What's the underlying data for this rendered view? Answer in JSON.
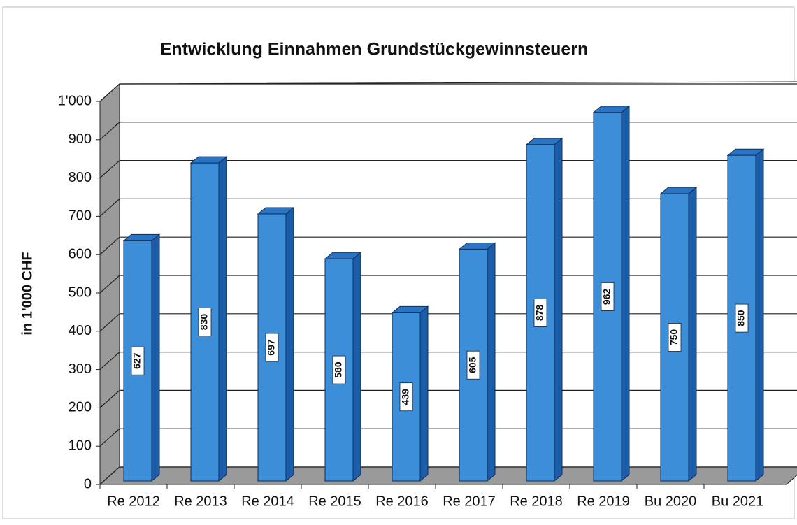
{
  "chart_data": {
    "type": "bar3d",
    "title": "Entwicklung Einnahmen Grundstückgewinnsteuern",
    "y_label": "in 1'000 CHF",
    "categories": [
      "Re 2012",
      "Re 2013",
      "Re 2014",
      "Re 2015",
      "Re 2016",
      "Re 2017",
      "Re 2018",
      "Re 2019",
      "Bu 2020",
      "Bu 2021"
    ],
    "values": [
      627,
      830,
      697,
      580,
      439,
      605,
      878,
      962,
      750,
      850
    ],
    "color": "#3d8ed8",
    "ylim": [
      0,
      1000
    ],
    "yticks": [
      0,
      100,
      200,
      300,
      400,
      500,
      600,
      700,
      800,
      900,
      {
        "value": 1000,
        "label": "1'000"
      }
    ],
    "grid": true
  }
}
